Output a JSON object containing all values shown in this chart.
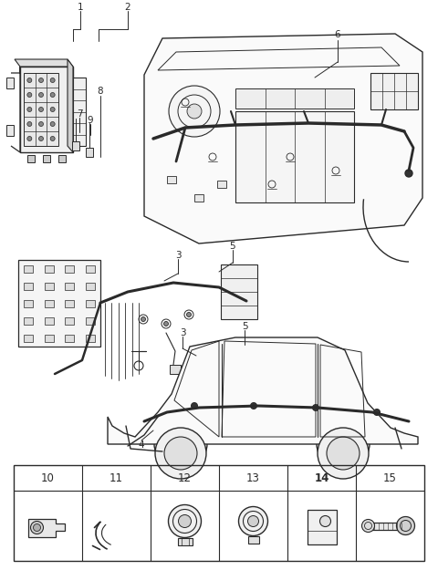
{
  "bg_color": "#ffffff",
  "lc": "#2a2a2a",
  "fig_width": 4.8,
  "fig_height": 6.25,
  "dpi": 100,
  "table_labels": [
    "10",
    "11",
    "12",
    "13",
    "14",
    "15"
  ],
  "label_fontsize": 7.5,
  "table_label_fontsize": 8.5
}
